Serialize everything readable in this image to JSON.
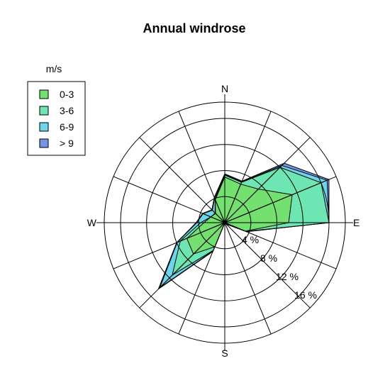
{
  "chart_data": {
    "type": "windrose",
    "title": "Annual windrose",
    "directions": [
      "N",
      "NNE",
      "NE",
      "ENE",
      "E",
      "ESE",
      "SE",
      "SSE",
      "S",
      "SSW",
      "SW",
      "WSW",
      "W",
      "WNW",
      "NW",
      "NNW"
    ],
    "compass_labels": [
      "N",
      "E",
      "S",
      "W"
    ],
    "ring_values": [
      4,
      8,
      12,
      16
    ],
    "ring_labels": [
      "4 %",
      "8 %",
      "12 %",
      "16 %"
    ],
    "rmax": 18.5,
    "legend_title": "m/s",
    "series": [
      {
        "name": "0-3",
        "color": "#73e06f",
        "cumulative": [
          7.0,
          6.4,
          7.3,
          11.2,
          9.8,
          3.4,
          0.3,
          0.2,
          0.0,
          4.0,
          6.8,
          6.3,
          3.2,
          2.3,
          2.0,
          3.8
        ]
      },
      {
        "name": "3-6",
        "color": "#6de6b4",
        "cumulative": [
          7.3,
          6.7,
          12.0,
          16.0,
          16.0,
          3.5,
          0.3,
          0.2,
          0.0,
          4.6,
          11.4,
          7.4,
          3.7,
          2.3,
          2.1,
          3.9
        ]
      },
      {
        "name": "6-9",
        "color": "#6dd6ec",
        "cumulative": [
          7.4,
          6.8,
          12.4,
          17.0,
          16.0,
          3.6,
          0.3,
          0.2,
          0.0,
          4.7,
          14.1,
          7.9,
          4.3,
          3.6,
          2.7,
          4.1
        ]
      },
      {
        "name": "> 9",
        "color": "#7694e4",
        "cumulative": [
          7.5,
          6.9,
          12.9,
          17.3,
          16.0,
          3.6,
          0.3,
          0.2,
          0.0,
          4.8,
          14.4,
          8.0,
          4.4,
          3.7,
          2.8,
          4.2
        ]
      }
    ]
  }
}
